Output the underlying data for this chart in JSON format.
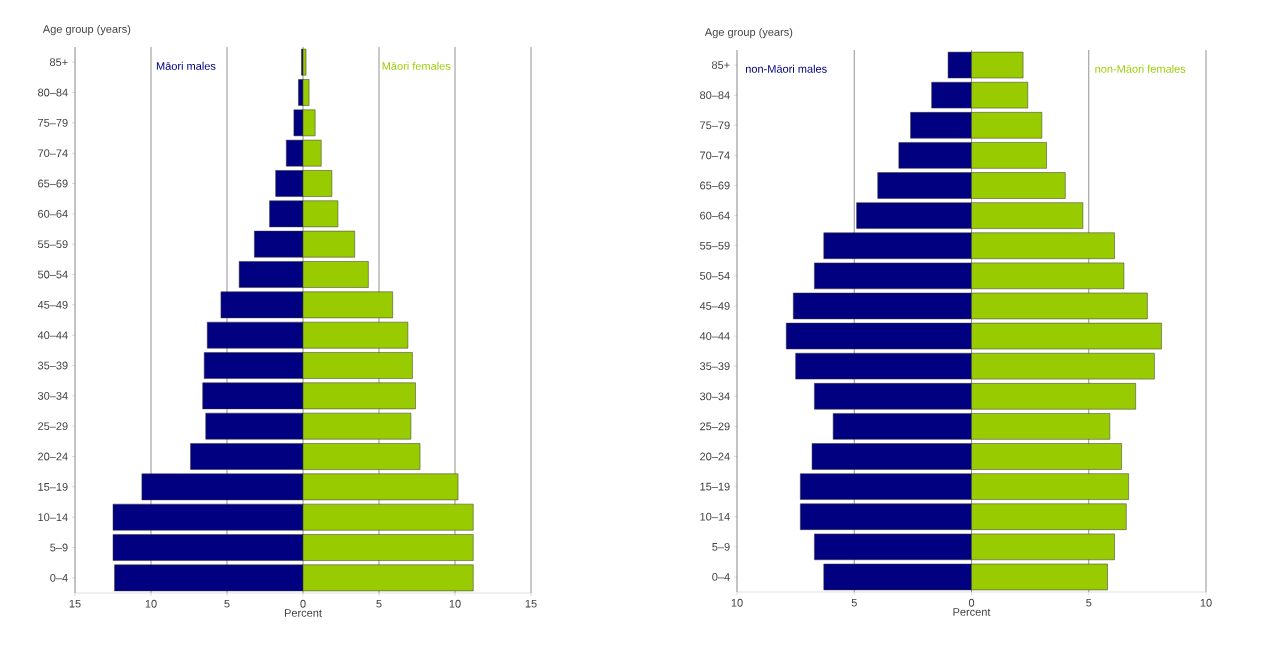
{
  "chart_data": [
    {
      "type": "bar",
      "orientation": "horizontal",
      "stacked": true,
      "xlabel": "Percent",
      "ylabel": "Age group (years)",
      "categories": [
        "85+",
        "80–84",
        "75–79",
        "70–74",
        "65–69",
        "60–64",
        "55–59",
        "50–54",
        "45–49",
        "40–44",
        "35–39",
        "30–34",
        "25–29",
        "20–24",
        "15–19",
        "10–14",
        "5–9",
        "0–4"
      ],
      "series": [
        {
          "name": "Māori males",
          "color": "#000080",
          "values": [
            -0.1,
            -0.3,
            -0.6,
            -1.1,
            -1.8,
            -2.2,
            -3.2,
            -4.2,
            -5.4,
            -6.3,
            -6.5,
            -6.6,
            -6.4,
            -7.4,
            -10.6,
            -12.5,
            -12.5,
            -12.4
          ]
        },
        {
          "name": "Māori females",
          "color": "#99cc00",
          "values": [
            0.2,
            0.4,
            0.8,
            1.2,
            1.9,
            2.3,
            3.4,
            4.3,
            5.9,
            6.9,
            7.2,
            7.4,
            7.1,
            7.7,
            10.2,
            11.2,
            11.2,
            11.2
          ]
        }
      ],
      "xlim": [
        -15,
        15
      ],
      "xticks": [
        {
          "value": -15,
          "label": "15"
        },
        {
          "value": -10,
          "label": "10"
        },
        {
          "value": -5,
          "label": "5"
        },
        0,
        5,
        10,
        15
      ],
      "grid": "x",
      "legend": false
    },
    {
      "type": "bar",
      "orientation": "horizontal",
      "stacked": true,
      "xlabel": "Percent",
      "ylabel": "Age group (years)",
      "categories": [
        "85+",
        "80–84",
        "75–79",
        "70–74",
        "65–69",
        "60–64",
        "55–59",
        "50–54",
        "45–49",
        "40–44",
        "35–39",
        "30–34",
        "25–29",
        "20–24",
        "15–19",
        "10–14",
        "5–9",
        "0–4"
      ],
      "series": [
        {
          "name": "non-Māori males",
          "color": "#000080",
          "values": [
            -1.0,
            -1.7,
            -2.6,
            -3.1,
            -4.0,
            -4.9,
            -6.3,
            -6.7,
            -7.6,
            -7.9,
            -7.5,
            -6.7,
            -5.9,
            -6.8,
            -7.3,
            -7.3,
            -6.7,
            -6.3
          ]
        },
        {
          "name": "non-Māori females",
          "color": "#99cc00",
          "values": [
            2.2,
            2.4,
            3.0,
            3.2,
            4.0,
            4.75,
            6.1,
            6.5,
            7.5,
            8.1,
            7.8,
            7.0,
            5.9,
            6.4,
            6.7,
            6.6,
            6.1,
            5.8
          ]
        }
      ],
      "xlim": [
        -10,
        10
      ],
      "xticks": [
        {
          "value": -10,
          "label": "10"
        },
        {
          "value": -5,
          "label": "5"
        },
        0,
        5,
        10
      ],
      "grid": "x",
      "legend": false
    }
  ]
}
